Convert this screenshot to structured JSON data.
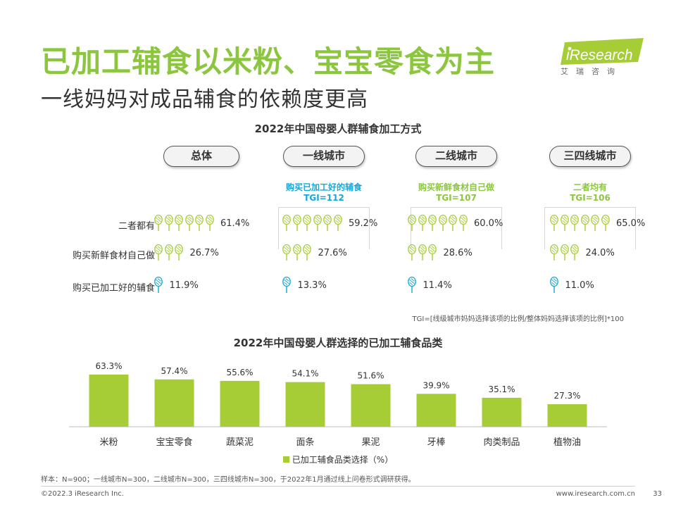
{
  "title": "已加工辅食以米粉、宝宝零食为主",
  "subtitle": "一线妈妈对成品辅食的依赖度更高",
  "logo": {
    "name": "iResearch",
    "sub": "艾瑞咨询"
  },
  "colors": {
    "green": "#a6cc36",
    "title_green": "#8cc63f",
    "blue": "#12a9d9"
  },
  "segment_chart": {
    "title": "2022年中国母婴人群辅食加工方式",
    "row_labels": [
      "二者都有",
      "购买新鲜食材自己做",
      "购买已加工好的辅食"
    ],
    "groups": [
      {
        "name": "总体",
        "highlight": "",
        "tgi": "",
        "values": [
          "61.4%",
          "26.7%",
          "11.9%"
        ]
      },
      {
        "name": "一线城市",
        "highlight": "购买已加工好的辅食",
        "tgi": "TGI=112",
        "values": [
          "59.2%",
          "27.6%",
          "13.3%"
        ]
      },
      {
        "name": "二线城市",
        "highlight": "购买新鲜食材自己做",
        "tgi": "TGI=107",
        "values": [
          "60.0%",
          "28.6%",
          "11.4%"
        ]
      },
      {
        "name": "三四线城市",
        "highlight": "二者均有",
        "tgi": "TGI=106",
        "values": [
          "65.0%",
          "24.0%",
          "11.0%"
        ]
      }
    ],
    "tgi_note": "TGI=[线级城市妈妈选择该项的比例/整体妈妈选择该项的比例]*100"
  },
  "chart_data": {
    "type": "bar",
    "title": "2022年中国母婴人群选择的已加工辅食品类",
    "categories": [
      "米粉",
      "宝宝零食",
      "蔬菜泥",
      "面条",
      "果泥",
      "牙棒",
      "肉类制品",
      "植物油"
    ],
    "series": [
      {
        "name": "已加工辅食品类选择（%）",
        "values": [
          63.3,
          57.4,
          55.6,
          54.1,
          51.6,
          39.9,
          35.1,
          27.3
        ]
      }
    ],
    "value_labels": [
      "63.3%",
      "57.4%",
      "55.6%",
      "54.1%",
      "51.6%",
      "39.9%",
      "35.1%",
      "27.3%"
    ],
    "ylim": [
      0,
      70
    ],
    "grid": false,
    "legend": "bottom"
  },
  "footer": {
    "sample": "样本：N=900；一线城市N=300，二线城市N=300，三四线城市N=300，于2022年1月通过线上问卷形式调研获得。",
    "copyright": "©2022.3 iResearch Inc.",
    "url": "www.iresearch.com.cn",
    "page": "33"
  }
}
